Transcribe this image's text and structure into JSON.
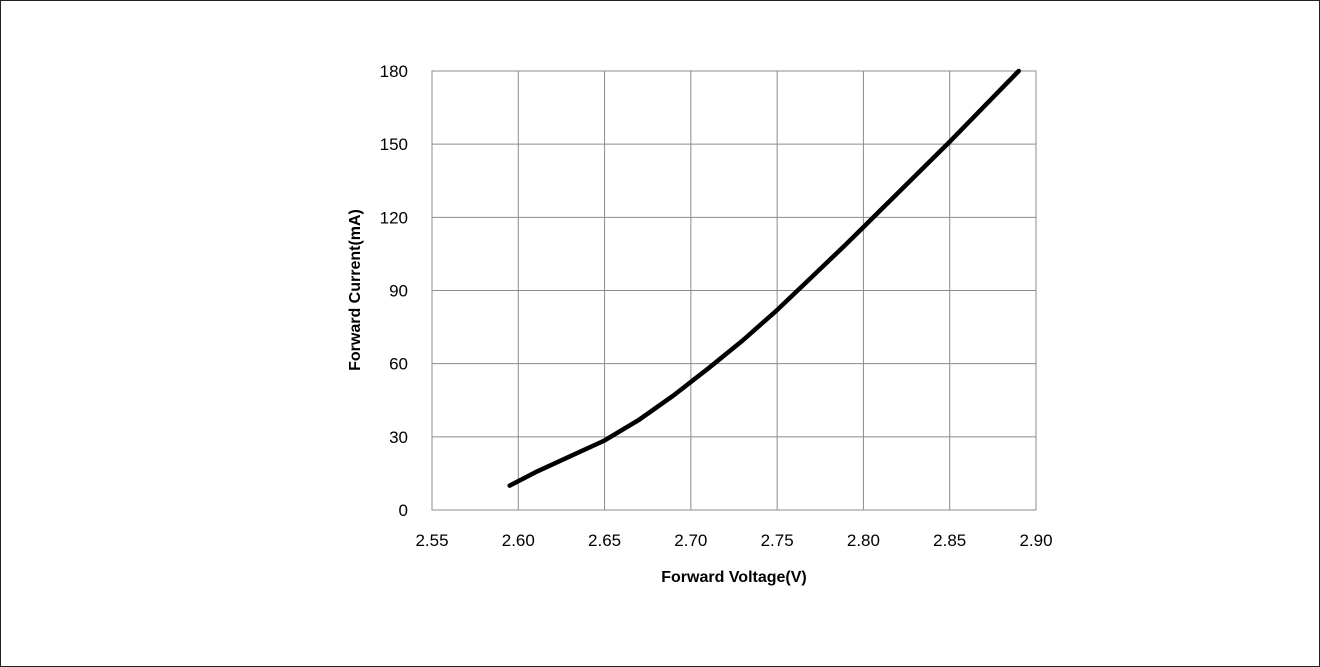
{
  "chart_data": {
    "type": "line",
    "title": "",
    "xlabel": "Forward Voltage(V)",
    "ylabel": "Forward Current(mA)",
    "xlim": [
      2.55,
      2.9
    ],
    "ylim": [
      0,
      180
    ],
    "xticks": [
      "2.55",
      "2.60",
      "2.65",
      "2.70",
      "2.75",
      "2.80",
      "2.85",
      "2.90"
    ],
    "yticks": [
      "0",
      "30",
      "60",
      "90",
      "120",
      "150",
      "180"
    ],
    "grid": true,
    "legend": "none",
    "line_color": "#000000",
    "series": [
      {
        "x": [
          2.595,
          2.61,
          2.63,
          2.65,
          2.67,
          2.69,
          2.7,
          2.71,
          2.73,
          2.75,
          2.77,
          2.79,
          2.8,
          2.81,
          2.83,
          2.85,
          2.87,
          2.89
        ],
        "y": [
          10,
          15.5,
          22,
          28.5,
          37,
          47,
          52.5,
          58,
          69.5,
          82,
          95.5,
          109,
          116,
          123,
          137,
          151,
          165.5,
          180
        ]
      }
    ]
  }
}
